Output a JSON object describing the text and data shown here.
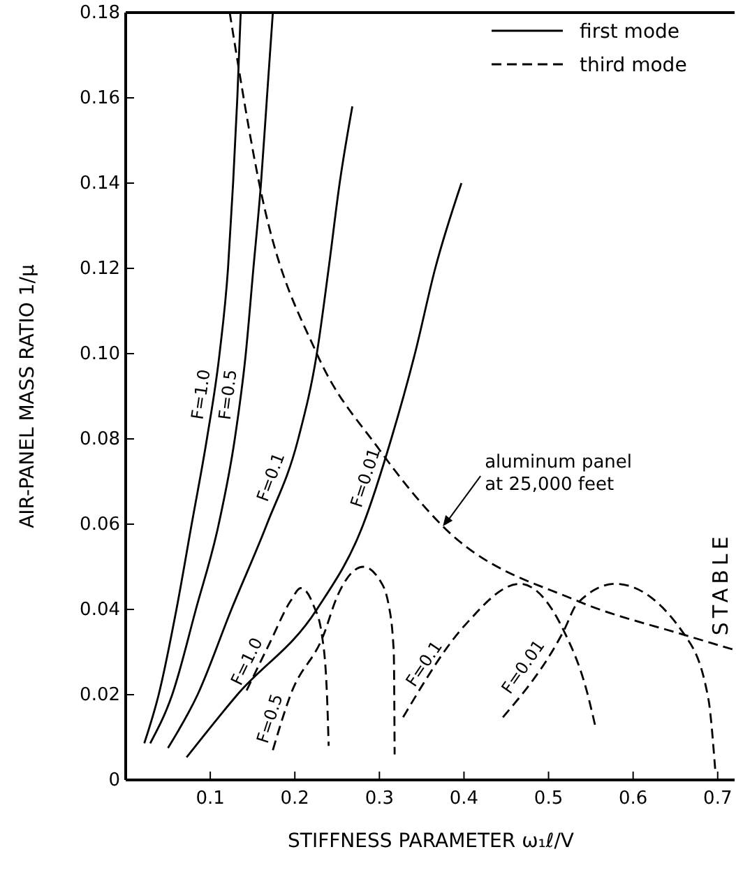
{
  "chart_data": {
    "type": "line",
    "xlabel": "STIFFNESS PARAMETER ω₁ℓ/V",
    "ylabel": "AIR-PANEL MASS RATIO 1/μ",
    "xlim": [
      0,
      0.72
    ],
    "ylim": [
      0,
      0.18
    ],
    "xticks": [
      0.1,
      0.2,
      0.3,
      0.4,
      0.5,
      0.6,
      0.7
    ],
    "yticks": [
      0,
      0.02,
      0.04,
      0.06,
      0.08,
      {
        "value": 0.1,
        "label": "0.10"
      },
      0.12,
      0.14,
      0.16,
      0.18
    ],
    "grid": false,
    "marker": "none",
    "series": [
      {
        "name": "F=1.0",
        "color": "#000000",
        "line_style": "solid",
        "x": [
          0.022,
          0.039,
          0.06,
          0.078,
          0.096,
          0.111,
          0.121,
          0.127,
          0.132,
          0.136
        ],
        "values": [
          0.0086,
          0.02,
          0.04,
          0.06,
          0.08,
          0.1,
          0.12,
          0.14,
          0.16,
          0.18
        ]
      },
      {
        "name": "F=0.5",
        "color": "#000000",
        "line_style": "solid",
        "x": [
          0.029,
          0.055,
          0.083,
          0.11,
          0.129,
          0.142,
          0.151,
          0.16,
          0.167,
          0.174
        ],
        "values": [
          0.0086,
          0.02,
          0.04,
          0.06,
          0.08,
          0.1,
          0.12,
          0.14,
          0.16,
          0.18
        ]
      },
      {
        "name": "F=0.1",
        "color": "#000000",
        "line_style": "solid",
        "x": [
          0.05,
          0.085,
          0.125,
          0.167,
          0.204,
          0.226,
          0.24,
          0.253,
          0.268
        ],
        "values": [
          0.0075,
          0.02,
          0.04,
          0.06,
          0.08,
          0.1,
          0.12,
          0.14,
          0.158
        ]
      },
      {
        "name": "F=0.01",
        "color": "#000000",
        "line_style": "solid",
        "x": [
          0.072,
          0.132,
          0.226,
          0.281,
          0.314,
          0.342,
          0.366,
          0.397
        ],
        "values": [
          0.0053,
          0.02,
          0.04,
          0.06,
          0.08,
          0.1,
          0.12,
          0.14
        ]
      },
      {
        "name": "F=1.0",
        "color": "#000000",
        "line_style": "dashed",
        "x": [
          0.143,
          0.17,
          0.195,
          0.207,
          0.222,
          0.232,
          0.238,
          0.24
        ],
        "values": [
          0.021,
          0.032,
          0.042,
          0.045,
          0.041,
          0.034,
          0.02,
          0.008
        ]
      },
      {
        "name": "F=0.5",
        "color": "#000000",
        "line_style": "dashed",
        "x": [
          0.174,
          0.195,
          0.234,
          0.25,
          0.281,
          0.3,
          0.311,
          0.317,
          0.318
        ],
        "values": [
          0.007,
          0.02,
          0.034,
          0.043,
          0.05,
          0.047,
          0.041,
          0.03,
          0.006
        ]
      },
      {
        "name": "F=0.1",
        "color": "#000000",
        "line_style": "dashed",
        "x": [
          0.328,
          0.402,
          0.466,
          0.518,
          0.545,
          0.556
        ],
        "values": [
          0.0147,
          0.0365,
          0.046,
          0.035,
          0.021,
          0.012
        ]
      },
      {
        "name": "F=0.01",
        "color": "#000000",
        "line_style": "dashed",
        "x": [
          0.446,
          0.518,
          0.534,
          0.579,
          0.661,
          0.689,
          0.697
        ],
        "values": [
          0.0147,
          0.035,
          0.0414,
          0.046,
          0.034,
          0.019,
          0.0026
        ]
      },
      {
        "color": "#000000",
        "line_style": "dashed",
        "x": [
          0.123,
          0.161,
          0.226,
          0.298,
          0.375,
          0.534,
          0.661,
          0.72
        ],
        "values": [
          0.18,
          0.137,
          0.1,
          0.078,
          0.0595,
          0.042,
          0.034,
          0.0305
        ]
      }
    ],
    "annotations": [
      {
        "text": "aluminum panel\nat 25,000 feet",
        "x": 0.375,
        "y": 0.0595
      },
      "first mode",
      "third mode",
      "STABLE"
    ]
  }
}
